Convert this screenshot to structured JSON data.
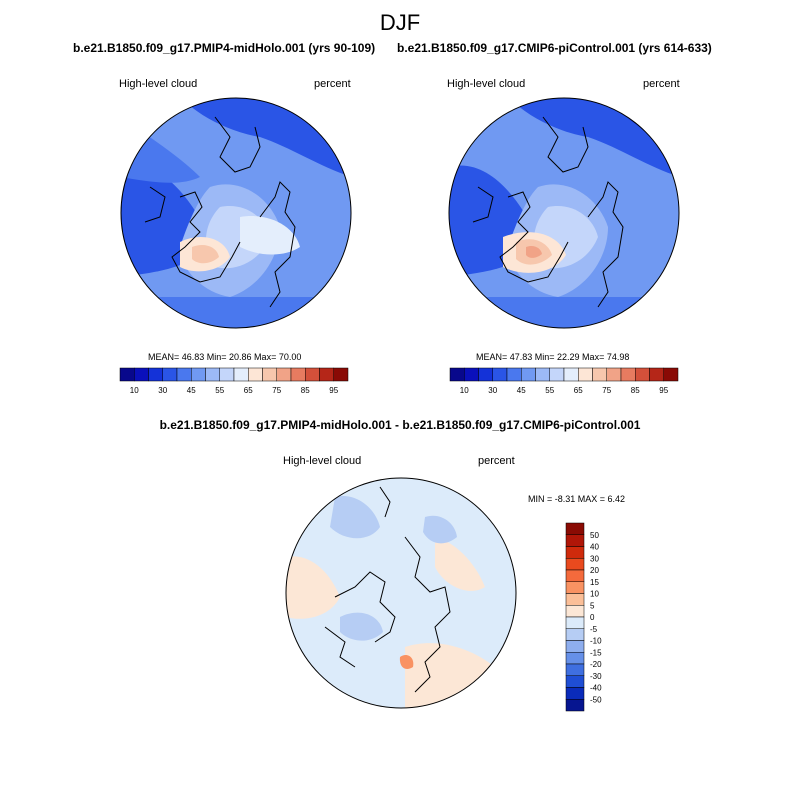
{
  "chart_data": {
    "type": "heatmap",
    "title": "DJF",
    "panels": [
      {
        "id": "midholo",
        "subtitle": "b.e21.B1850.f09_g17.PMIP4-midHolo.001 (yrs 90-109)",
        "variable": "High-level cloud",
        "units": "percent",
        "stats": {
          "label": "MEAN=  46.83  Min=  20.86  Max=  70.00",
          "mean": 46.83,
          "min": 20.86,
          "max": 70.0
        },
        "colorbar_ticks": [
          "10",
          "30",
          "45",
          "55",
          "65",
          "75",
          "85",
          "95"
        ]
      },
      {
        "id": "picontrol",
        "subtitle": "b.e21.B1850.f09_g17.CMIP6-piControl.001 (yrs 614-633)",
        "variable": "High-level cloud",
        "units": "percent",
        "stats": {
          "label": "MEAN=  47.83  Min=  22.29  Max=  74.98",
          "mean": 47.83,
          "min": 22.29,
          "max": 74.98
        },
        "colorbar_ticks": [
          "10",
          "30",
          "45",
          "55",
          "65",
          "75",
          "85",
          "95"
        ]
      },
      {
        "id": "difference",
        "subtitle": "b.e21.B1850.f09_g17.PMIP4-midHolo.001 - b.e21.B1850.f09_g17.CMIP6-piControl.001",
        "variable": "High-level cloud",
        "units": "percent",
        "stats": {
          "label": "MIN =  -8.31 MAX =   6.42",
          "min": -8.31,
          "max": 6.42
        },
        "colorbar_ticks": [
          "50",
          "40",
          "30",
          "20",
          "15",
          "10",
          "5",
          "0",
          "-5",
          "-10",
          "-15",
          "-20",
          "-30",
          "-40",
          "-50"
        ]
      }
    ],
    "abs_palette": [
      "#08088c",
      "#0a10bb",
      "#1432d8",
      "#2a55e6",
      "#4a78ee",
      "#7099f2",
      "#9cb9f6",
      "#c4d6fa",
      "#e4eefc",
      "#fde6d6",
      "#f7c7ad",
      "#f1a387",
      "#e77b60",
      "#d3503a",
      "#b52618",
      "#8a0a05"
    ],
    "diff_palette": [
      "#8a0b04",
      "#b01608",
      "#cf2a0c",
      "#e94a1e",
      "#f46a3c",
      "#f99262",
      "#fbbf98",
      "#fce7d6",
      "#dcebfa",
      "#b6cdf4",
      "#8eaeee",
      "#6690e8",
      "#3f6fe0",
      "#1f4ed4",
      "#0a2bba",
      "#061590"
    ]
  }
}
